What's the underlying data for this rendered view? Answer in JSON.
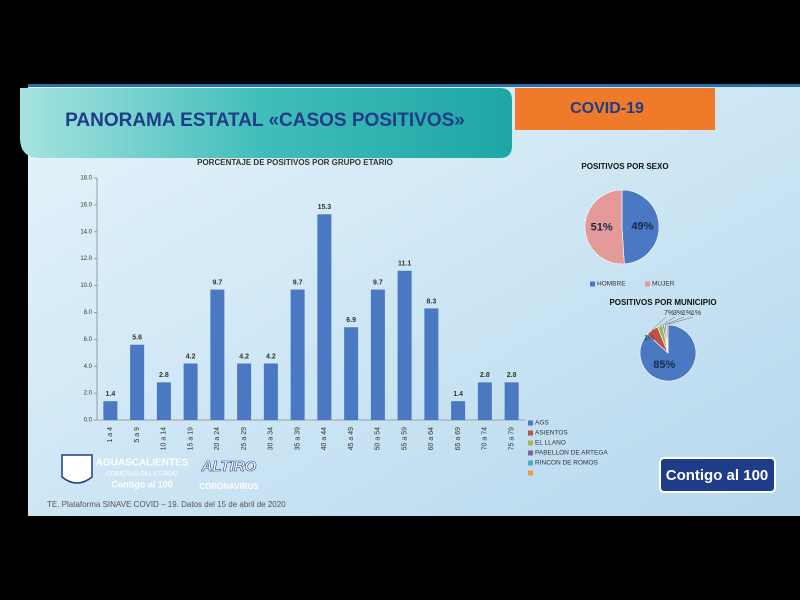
{
  "header": {
    "title": "PANORAMA ESTATAL «CASOS POSITIVOS»",
    "tag": "COVID-19"
  },
  "chart_data": [
    {
      "type": "bar",
      "title": "PORCENTAJE DE POSITIVOS POR GRUPO ETARIO",
      "categories": [
        "1 a 4",
        "5 a 9",
        "10 a 14",
        "15 a 19",
        "20 a 24",
        "25 a 29",
        "30 a 34",
        "35 a 39",
        "40 a 44",
        "45 a 49",
        "50 a 54",
        "55 a 59",
        "60 a 64",
        "65 a 69",
        "70 a 74",
        "75 a 79"
      ],
      "values": [
        1.4,
        5.6,
        2.8,
        4.2,
        9.7,
        4.2,
        4.2,
        9.7,
        15.3,
        6.9,
        9.7,
        11.1,
        8.3,
        1.4,
        2.8,
        2.8
      ],
      "color": "#4a78c2",
      "ylim": [
        0,
        18
      ],
      "yticks": [
        {
          "value": 0,
          "label": "0.0"
        },
        {
          "value": 2,
          "label": "2.0"
        },
        {
          "value": 4,
          "label": "4.0"
        },
        {
          "value": 6,
          "label": "6.0"
        },
        {
          "value": 8,
          "label": "8.0"
        },
        {
          "value": 10,
          "label": "10.0"
        },
        {
          "value": 12,
          "label": "12.0"
        },
        {
          "value": 14,
          "label": "14.0"
        },
        {
          "value": 16,
          "label": "16.0"
        },
        {
          "value": 18,
          "label": "18.0"
        }
      ]
    },
    {
      "type": "pie",
      "title": "POSITIVOS POR SEXO",
      "categories": [
        "HOMBRE",
        "MUJER"
      ],
      "values": [
        49,
        51
      ],
      "value_labels": [
        "49%",
        "51%"
      ],
      "colors": [
        "#4a78c2",
        "#e59a9a"
      ]
    },
    {
      "type": "pie",
      "title": "POSITIVOS POR MUNICIPIO",
      "categories": [
        "AGS",
        "ASIENTOS",
        "EL LLANO",
        "PABELLON DE ARTEGA",
        "RINCON DE ROMOS",
        null
      ],
      "values": [
        85,
        7,
        3,
        1,
        1,
        1
      ],
      "value_labels": [
        "85%",
        "7%",
        "3%",
        "1%",
        "1%",
        "1%"
      ],
      "colors": [
        "#4a78c2",
        "#c0504d",
        "#9bbb59",
        "#8064a2",
        "#4bacc6",
        "#f79646"
      ]
    }
  ],
  "footer": {
    "source": "TE. Plataforma SINAVE COVID – 19. Datos del 15 de abril de 2020",
    "state": "AGUASCALIENTES",
    "government": "GOBIERNO DEL ESTADO",
    "slogan": "Contigo al 100",
    "campaign": "ALTIRO",
    "campaign_sub": "CORONAVIRUS",
    "badge": "Contigo al 100"
  }
}
